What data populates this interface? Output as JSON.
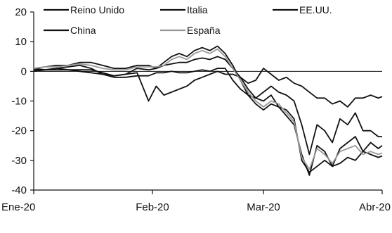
{
  "chart_data": {
    "type": "line",
    "title": "",
    "xlabel": "",
    "ylabel": "",
    "ylim": [
      -40,
      20
    ],
    "yticks": [
      20,
      10,
      0,
      -10,
      -20,
      -30,
      -40
    ],
    "x_tick_labels": [
      "Ene-20",
      "Feb-20",
      "Mar-20",
      "Abr-20"
    ],
    "x_tick_positions": [
      0,
      31,
      60,
      91
    ],
    "x_range": [
      0,
      91
    ],
    "grid": false,
    "legend_position": "top",
    "series": [
      {
        "name": "Reino Unido",
        "color": "#111111",
        "dash": "",
        "x": [
          0,
          3,
          6,
          9,
          12,
          15,
          18,
          21,
          24,
          27,
          30,
          32,
          34,
          36,
          38,
          40,
          42,
          44,
          46,
          48,
          50,
          52,
          54,
          56,
          58,
          60,
          62,
          64,
          66,
          68,
          70,
          72,
          74,
          76,
          78,
          80,
          82,
          84,
          86,
          88,
          90,
          91
        ],
        "y": [
          1,
          0.5,
          1,
          1.5,
          2,
          1,
          -1,
          -1.5,
          -1,
          1,
          0.5,
          1,
          2,
          2.5,
          3,
          3,
          4,
          4.5,
          4,
          5,
          4,
          1,
          -2,
          -6,
          -9,
          -10,
          -8,
          -12,
          -13,
          -16,
          -30,
          -34,
          -32,
          -30,
          -32,
          -31,
          -29,
          -30,
          -27,
          -28,
          -29,
          -28.5
        ]
      },
      {
        "name": "Italia",
        "color": "#111111",
        "dash": "",
        "x": [
          0,
          3,
          6,
          9,
          12,
          15,
          18,
          21,
          24,
          27,
          30,
          32,
          34,
          36,
          38,
          40,
          42,
          44,
          46,
          48,
          50,
          52,
          54,
          56,
          58,
          60,
          62,
          64,
          66,
          68,
          70,
          72,
          74,
          76,
          78,
          80,
          82,
          84,
          86,
          88,
          90,
          91
        ],
        "y": [
          1,
          1.5,
          2,
          2,
          3,
          3,
          2,
          1,
          1,
          2,
          2,
          1,
          3,
          5,
          6,
          5,
          7,
          8,
          7,
          8.5,
          6,
          2,
          -3,
          -8,
          -11,
          -13,
          -11,
          -12,
          -15,
          -18,
          -28,
          -35,
          -25,
          -27,
          -32,
          -26,
          -24,
          -22,
          -27,
          -24,
          -26,
          -25
        ]
      },
      {
        "name": "EE.UU.",
        "color": "#111111",
        "dash": "",
        "x": [
          0,
          3,
          6,
          9,
          12,
          15,
          18,
          21,
          24,
          27,
          30,
          32,
          34,
          36,
          38,
          40,
          42,
          44,
          46,
          48,
          50,
          52,
          54,
          56,
          58,
          60,
          62,
          64,
          66,
          68,
          70,
          72,
          74,
          76,
          78,
          80,
          82,
          84,
          86,
          88,
          90,
          91
        ],
        "y": [
          0.5,
          0.5,
          1,
          0.5,
          0.5,
          0.5,
          -0.5,
          -1.5,
          -1,
          -0.5,
          -10,
          -5,
          -8,
          -7,
          -6,
          -5,
          -3,
          -2,
          -1,
          0,
          -1,
          -1,
          -2,
          -4,
          -3,
          1,
          -1,
          -3,
          -2,
          -4,
          -5,
          -7,
          -9,
          -9,
          -11,
          -10,
          -12,
          -9,
          -9,
          -8,
          -9,
          -8.5
        ]
      },
      {
        "name": "China",
        "color": "#111111",
        "dash": "",
        "x": [
          0,
          3,
          6,
          9,
          12,
          15,
          18,
          21,
          24,
          27,
          30,
          32,
          34,
          36,
          38,
          40,
          42,
          44,
          46,
          48,
          50,
          52,
          54,
          56,
          58,
          60,
          62,
          64,
          66,
          68,
          70,
          72,
          74,
          76,
          78,
          80,
          82,
          84,
          86,
          88,
          90,
          91
        ],
        "y": [
          0,
          0.5,
          0.5,
          0.5,
          0,
          -0.5,
          -1,
          -2,
          -2,
          -1.5,
          -1.5,
          -0.5,
          -0.5,
          0,
          -0.5,
          -0.5,
          0,
          0.5,
          0,
          1,
          1,
          -3,
          -6,
          -8,
          -9,
          -7,
          -5,
          -7,
          -8,
          -10,
          -18,
          -28,
          -18,
          -20,
          -24,
          -16,
          -18,
          -14,
          -20,
          -20,
          -22,
          -22
        ]
      },
      {
        "name": "España",
        "color": "#999999",
        "dash": "",
        "x": [
          0,
          3,
          6,
          9,
          12,
          15,
          18,
          21,
          24,
          27,
          30,
          32,
          34,
          36,
          38,
          40,
          42,
          44,
          46,
          48,
          50,
          52,
          54,
          56,
          58,
          60,
          62,
          64,
          66,
          68,
          70,
          72,
          74,
          76,
          78,
          80,
          82,
          84,
          86,
          88,
          90,
          91
        ],
        "y": [
          1,
          1.5,
          1.5,
          2,
          2.5,
          2,
          1,
          0.5,
          0.5,
          1.5,
          1.5,
          1.5,
          2,
          4,
          5,
          4,
          6,
          7,
          6,
          7.5,
          5,
          1,
          -3,
          -7,
          -10,
          -12,
          -10,
          -11,
          -14,
          -17,
          -29,
          -33,
          -26,
          -28,
          -31,
          -27,
          -26,
          -25,
          -28,
          -27,
          -28,
          -27.5
        ]
      }
    ]
  }
}
